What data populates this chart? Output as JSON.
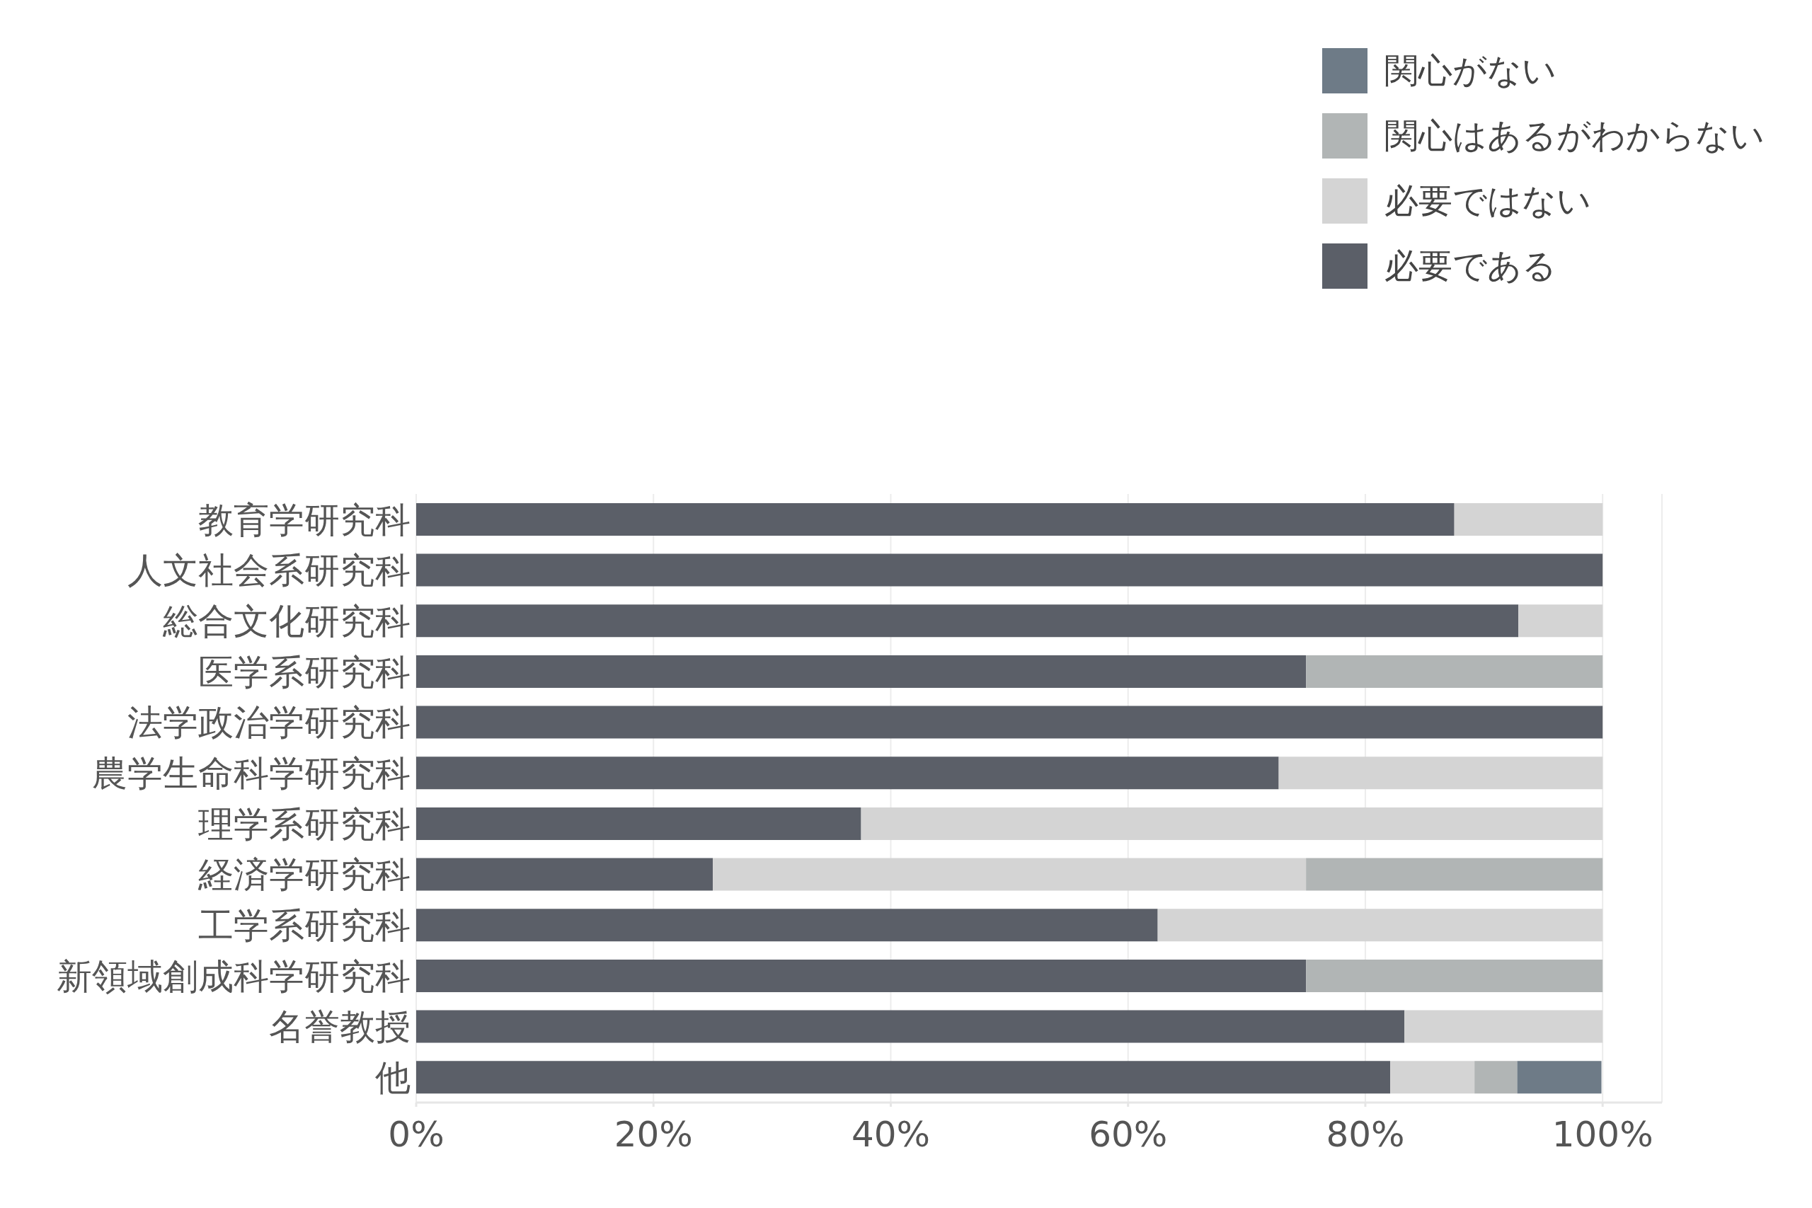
{
  "chart_data": {
    "type": "bar",
    "orientation": "horizontal",
    "stacked": true,
    "categories": [
      "教育学研究科",
      "人文社会系研究科",
      "総合文化研究科",
      "医学系研究科",
      "法学政治学研究科",
      "農学生命科学研究科",
      "理学系研究科",
      "経済学研究科",
      "工学系研究科",
      "新領域創成科学研究科",
      "名誉教授",
      "他"
    ],
    "series": [
      {
        "name": "必要である",
        "color": "#5b5f68",
        "values": [
          87.5,
          100,
          92.9,
          75,
          100,
          72.7,
          37.5,
          25,
          62.5,
          75,
          83.3,
          82.1
        ]
      },
      {
        "name": "必要ではない",
        "color": "#d4d4d4",
        "values": [
          12.5,
          0,
          7.1,
          0,
          0,
          27.3,
          62.5,
          50,
          37.5,
          0,
          16.7,
          7.1
        ]
      },
      {
        "name": "関心はあるがわからない",
        "color": "#b1b5b5",
        "values": [
          0,
          0,
          0,
          25,
          0,
          0,
          0,
          25,
          0,
          25,
          0,
          3.6
        ]
      },
      {
        "name": "関心がない",
        "color": "#6e7b87",
        "values": [
          0,
          0,
          0,
          0,
          0,
          0,
          0,
          0,
          0,
          0,
          0,
          7.1
        ]
      }
    ],
    "xlim": [
      0,
      105
    ],
    "xticks": [
      {
        "value": 0,
        "label": "0%"
      },
      {
        "value": 20,
        "label": "20%"
      },
      {
        "value": 40,
        "label": "40%"
      },
      {
        "value": 60,
        "label": "60%"
      },
      {
        "value": 80,
        "label": "80%"
      },
      {
        "value": 100,
        "label": "100%"
      }
    ],
    "grid": "x",
    "legend": "top right"
  }
}
